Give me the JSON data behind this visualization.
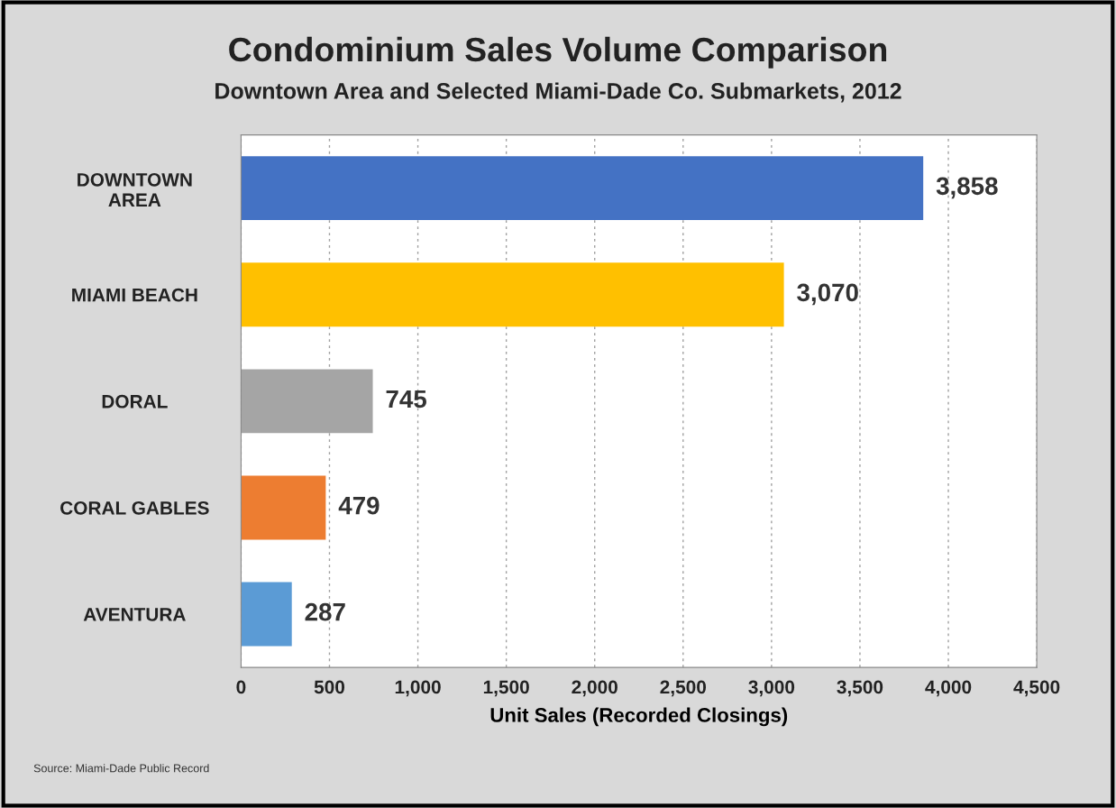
{
  "chart_data": {
    "type": "bar",
    "orientation": "horizontal",
    "title": "Condominium Sales Volume Comparison",
    "subtitle": "Downtown Area and Selected Miami-Dade Co. Submarkets, 2012",
    "xlabel": "Unit Sales (Recorded Closings)",
    "categories": [
      "DOWNTOWN\nAREA",
      "MIAMI BEACH",
      "DORAL",
      "CORAL GABLES",
      "AVENTURA"
    ],
    "values": [
      3858,
      3070,
      745,
      479,
      287
    ],
    "colors": [
      "#4472c4",
      "#ffc000",
      "#a5a5a5",
      "#ed7d31",
      "#5b9bd5"
    ],
    "value_labels": [
      "3,858",
      "3,070",
      "745",
      "479",
      "287"
    ],
    "xlim": [
      0,
      4500
    ],
    "xticks": [
      0,
      {
        "value": 500,
        "label": "500"
      },
      {
        "value": 1000,
        "label": "1,000"
      },
      {
        "value": 1500,
        "label": "1,500"
      },
      {
        "value": 2000,
        "label": "2,000"
      },
      {
        "value": 2500,
        "label": "2,500"
      },
      {
        "value": 3000,
        "label": "3,000"
      },
      {
        "value": 3500,
        "label": "3,500"
      },
      {
        "value": 4000,
        "label": "4,000"
      },
      {
        "value": 4500,
        "label": "4,500"
      }
    ],
    "grid": "x",
    "annotations": [
      "Source: Miami-Dade Public Record"
    ]
  }
}
